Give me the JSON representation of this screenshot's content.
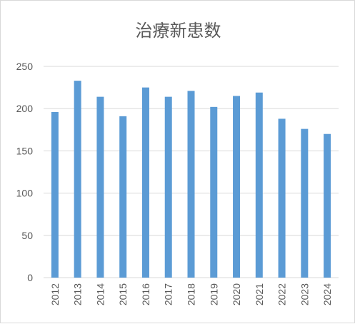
{
  "chart_data": {
    "type": "bar",
    "title": "治療新患数",
    "categories": [
      "2012",
      "2013",
      "2014",
      "2015",
      "2016",
      "2017",
      "2018",
      "2019",
      "2020",
      "2021",
      "2022",
      "2023",
      "2024"
    ],
    "values": [
      196,
      233,
      214,
      191,
      225,
      214,
      221,
      202,
      215,
      219,
      188,
      176,
      170
    ],
    "ylim": [
      0,
      250
    ],
    "yticks": [
      "0",
      "50",
      "100",
      "150",
      "200",
      "250"
    ],
    "grid": true,
    "bar_color": "#5b9bd5",
    "grid_color": "#d9d9d9"
  }
}
